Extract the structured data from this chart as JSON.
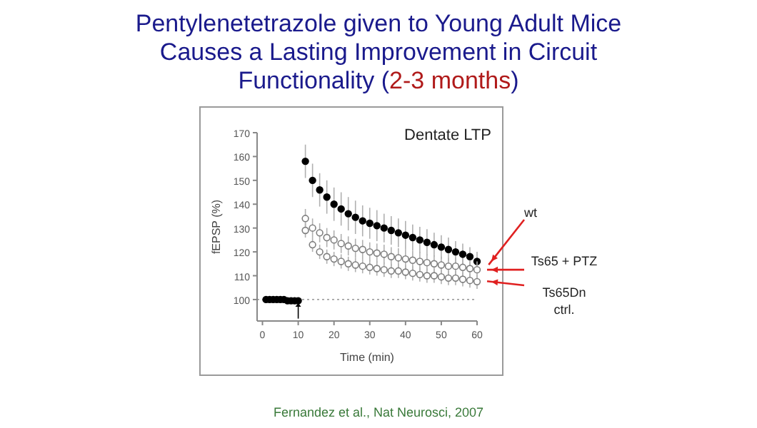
{
  "chart_data": {
    "type": "scatter",
    "title": "Pentylenetetrazole given to Young Adult Mice Causes a Lasting Improvement in Circuit Functionality (2-3 months)",
    "subtitle": "Dentate LTP",
    "xlabel": "Time (min)",
    "ylabel": "fEPSP (%)",
    "x": [
      1,
      2,
      3,
      4,
      5,
      6,
      7,
      8,
      9,
      10,
      12,
      14,
      16,
      18,
      20,
      22,
      24,
      26,
      28,
      30,
      32,
      34,
      36,
      38,
      40,
      42,
      44,
      46,
      48,
      50,
      52,
      54,
      56,
      58,
      60
    ],
    "series": [
      {
        "name": "wt",
        "color": "#000000",
        "values": [
          100,
          100,
          100,
          100,
          100,
          100,
          99.5,
          99.5,
          99.5,
          99.5,
          158,
          150,
          146,
          143,
          140,
          138,
          136,
          134.5,
          133,
          132,
          131,
          130,
          129,
          128,
          127,
          126,
          125,
          124,
          123,
          122,
          121,
          120,
          119,
          118,
          116
        ],
        "errors": [
          null,
          null,
          null,
          null,
          null,
          null,
          null,
          null,
          null,
          null,
          7,
          7,
          7,
          7,
          7,
          7,
          7,
          7,
          6.5,
          6.5,
          6.5,
          6,
          6,
          6,
          6,
          5.5,
          5.5,
          5.5,
          5,
          5,
          5,
          4.5,
          4.5,
          4,
          4
        ]
      },
      {
        "name": "Ts65 + PTZ",
        "color": "#7f7f7f",
        "values": [
          null,
          null,
          null,
          null,
          null,
          null,
          null,
          null,
          null,
          null,
          134,
          130,
          128,
          126,
          125,
          123.5,
          122.5,
          121.5,
          121,
          120,
          119.5,
          119,
          118,
          117.5,
          117,
          116.5,
          116,
          115.5,
          115,
          114.5,
          114,
          114,
          113.5,
          113,
          112.5
        ],
        "errors": [
          null,
          null,
          null,
          null,
          null,
          null,
          null,
          null,
          null,
          null,
          4,
          4,
          4,
          4,
          4,
          4,
          4,
          4,
          4,
          4,
          4,
          4,
          4,
          4,
          4,
          4,
          4,
          3.5,
          3.5,
          3.5,
          3.5,
          3.5,
          3.5,
          3.5,
          3.5
        ]
      },
      {
        "name": "Ts65Dn ctrl.",
        "color": "#7f7f7f",
        "values": [
          null,
          null,
          null,
          null,
          null,
          null,
          null,
          null,
          null,
          null,
          129,
          123,
          120,
          118,
          117,
          116,
          115,
          114.5,
          114,
          113.5,
          113,
          112.5,
          112,
          112,
          111.5,
          111,
          110.5,
          110,
          110,
          109.5,
          109,
          109,
          108.5,
          108,
          107.5
        ],
        "errors": [
          null,
          null,
          null,
          null,
          null,
          null,
          null,
          null,
          null,
          null,
          3,
          3,
          3,
          3,
          3,
          3,
          3,
          3,
          3,
          3,
          3,
          3,
          3,
          3,
          3,
          3,
          3,
          3,
          3,
          3,
          3,
          3,
          3,
          3,
          3
        ]
      }
    ],
    "xlim": [
      -1.5,
      60
    ],
    "xticks": [
      0,
      10,
      20,
      30,
      40,
      50,
      60
    ],
    "ylim": [
      91,
      170
    ],
    "yticks": [
      100,
      110,
      120,
      130,
      140,
      150,
      160,
      170
    ],
    "ref_lines": [
      {
        "axis": "y",
        "value": 100,
        "line_style": "dotted",
        "color": "#7f7f7f"
      }
    ],
    "marker": "circle",
    "grid": false,
    "annotations": [
      "Fernandez et al., Nat Neurosci, 2007"
    ]
  }
}
